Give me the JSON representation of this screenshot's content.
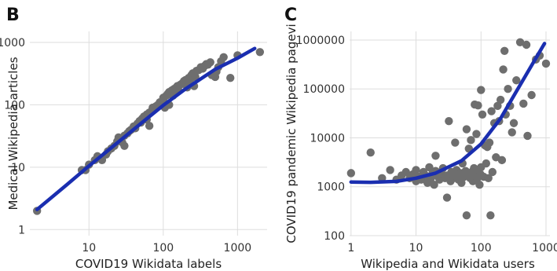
{
  "chart_data": [
    {
      "panel": "B",
      "type": "scatter",
      "xlabel": "COVID19 Wikidata labels",
      "ylabel": "Medical Wikipedia articles",
      "xscale": "log",
      "yscale": "log",
      "xticks": [
        {
          "value": 10,
          "label": "10"
        },
        {
          "value": 100,
          "label": "100"
        },
        {
          "value": 1000,
          "label": "1000"
        }
      ],
      "yticks": [
        {
          "value": 1,
          "label": "1"
        },
        {
          "value": 10,
          "label": "10"
        },
        {
          "value": 100,
          "label": "100"
        },
        {
          "value": 1000,
          "label": "1000"
        }
      ],
      "xlim": [
        1.6,
        2500
      ],
      "ylim": [
        0.8,
        1500
      ],
      "grid": true,
      "point_color": "#6e6e6e",
      "fit_color": "#1a2eb0",
      "points": [
        [
          2,
          2
        ],
        [
          8,
          9
        ],
        [
          9,
          9
        ],
        [
          10,
          11
        ],
        [
          12,
          13
        ],
        [
          13,
          15
        ],
        [
          15,
          13
        ],
        [
          17,
          16
        ],
        [
          18,
          18
        ],
        [
          20,
          20
        ],
        [
          22,
          22
        ],
        [
          24,
          26
        ],
        [
          25,
          30
        ],
        [
          28,
          25
        ],
        [
          30,
          22
        ],
        [
          30,
          32
        ],
        [
          33,
          35
        ],
        [
          35,
          38
        ],
        [
          37,
          40
        ],
        [
          40,
          45
        ],
        [
          42,
          42
        ],
        [
          45,
          50
        ],
        [
          48,
          55
        ],
        [
          50,
          52
        ],
        [
          52,
          60
        ],
        [
          55,
          65
        ],
        [
          60,
          58
        ],
        [
          60,
          70
        ],
        [
          65,
          46
        ],
        [
          65,
          75
        ],
        [
          70,
          80
        ],
        [
          72,
          90
        ],
        [
          75,
          85
        ],
        [
          80,
          95
        ],
        [
          85,
          100
        ],
        [
          90,
          110
        ],
        [
          95,
          105
        ],
        [
          100,
          120
        ],
        [
          100,
          130
        ],
        [
          105,
          90
        ],
        [
          110,
          140
        ],
        [
          115,
          150
        ],
        [
          120,
          160
        ],
        [
          120,
          100
        ],
        [
          130,
          170
        ],
        [
          135,
          140
        ],
        [
          140,
          180
        ],
        [
          150,
          190
        ],
        [
          155,
          200
        ],
        [
          160,
          170
        ],
        [
          170,
          210
        ],
        [
          180,
          220
        ],
        [
          190,
          240
        ],
        [
          200,
          250
        ],
        [
          210,
          190
        ],
        [
          220,
          270
        ],
        [
          230,
          230
        ],
        [
          240,
          300
        ],
        [
          250,
          320
        ],
        [
          260,
          200
        ],
        [
          270,
          280
        ],
        [
          280,
          350
        ],
        [
          300,
          360
        ],
        [
          320,
          400
        ],
        [
          340,
          380
        ],
        [
          360,
          420
        ],
        [
          380,
          450
        ],
        [
          400,
          440
        ],
        [
          430,
          480
        ],
        [
          450,
          300
        ],
        [
          500,
          280
        ],
        [
          520,
          340
        ],
        [
          550,
          400
        ],
        [
          600,
          500
        ],
        [
          650,
          580
        ],
        [
          800,
          270
        ],
        [
          1000,
          620
        ],
        [
          2000,
          700
        ]
      ],
      "fit": [
        [
          2,
          2.1
        ],
        [
          5,
          5.2
        ],
        [
          10,
          10.5
        ],
        [
          20,
          20.5
        ],
        [
          50,
          50
        ],
        [
          100,
          98
        ],
        [
          200,
          180
        ],
        [
          500,
          370
        ],
        [
          1000,
          560
        ],
        [
          1700,
          800
        ]
      ]
    },
    {
      "panel": "C",
      "type": "scatter",
      "xlabel": "Wikipedia and Wikidata users",
      "ylabel": "COVID19 pandemic Wikipedia pagevi",
      "xscale": "log",
      "yscale": "log",
      "xticks": [
        {
          "value": 1,
          "label": "1"
        },
        {
          "value": 10,
          "label": "10"
        },
        {
          "value": 100,
          "label": "100"
        },
        {
          "value": 1000,
          "label": "1000"
        }
      ],
      "yticks": [
        {
          "value": 100,
          "label": "100"
        },
        {
          "value": 1000,
          "label": "1000"
        },
        {
          "value": 10000,
          "label": "10000"
        },
        {
          "value": 100000,
          "label": "100000"
        },
        {
          "value": 1000000,
          "label": "1000000"
        }
      ],
      "xlim": [
        0.95,
        1150
      ],
      "ylim": [
        100,
        1500000
      ],
      "grid": true,
      "point_color": "#6e6e6e",
      "fit_color": "#1a2eb0",
      "points": [
        [
          1,
          1900
        ],
        [
          2,
          5000
        ],
        [
          3,
          1500
        ],
        [
          4,
          2200
        ],
        [
          5,
          1400
        ],
        [
          6,
          1700
        ],
        [
          7,
          2000
        ],
        [
          8,
          1500
        ],
        [
          9,
          1800
        ],
        [
          10,
          1300
        ],
        [
          10,
          2200
        ],
        [
          11,
          1600
        ],
        [
          12,
          1400
        ],
        [
          13,
          2000
        ],
        [
          14,
          1700
        ],
        [
          15,
          1200
        ],
        [
          16,
          2500
        ],
        [
          17,
          1500
        ],
        [
          18,
          1900
        ],
        [
          19,
          1100
        ],
        [
          20,
          2100
        ],
        [
          20,
          4300
        ],
        [
          22,
          1600
        ],
        [
          23,
          1400
        ],
        [
          25,
          1800
        ],
        [
          26,
          2400
        ],
        [
          28,
          1500
        ],
        [
          30,
          600
        ],
        [
          30,
          1700
        ],
        [
          32,
          22000
        ],
        [
          34,
          1300
        ],
        [
          35,
          2000
        ],
        [
          38,
          1500
        ],
        [
          40,
          8000
        ],
        [
          40,
          1700
        ],
        [
          42,
          2200
        ],
        [
          45,
          1400
        ],
        [
          48,
          1900
        ],
        [
          50,
          1200
        ],
        [
          52,
          3000
        ],
        [
          55,
          1600
        ],
        [
          58,
          2100
        ],
        [
          60,
          260
        ],
        [
          60,
          15000
        ],
        [
          62,
          1800
        ],
        [
          65,
          6000
        ],
        [
          68,
          1500
        ],
        [
          70,
          9000
        ],
        [
          72,
          2000
        ],
        [
          75,
          1300
        ],
        [
          78,
          2400
        ],
        [
          80,
          48000
        ],
        [
          82,
          1700
        ],
        [
          85,
          12000
        ],
        [
          88,
          1500
        ],
        [
          90,
          46000
        ],
        [
          92,
          2000
        ],
        [
          95,
          1100
        ],
        [
          98,
          1800
        ],
        [
          100,
          95000
        ],
        [
          100,
          2500
        ],
        [
          105,
          30000
        ],
        [
          110,
          1600
        ],
        [
          115,
          7000
        ],
        [
          120,
          3000
        ],
        [
          125,
          6500
        ],
        [
          130,
          1500
        ],
        [
          135,
          8000
        ],
        [
          140,
          260
        ],
        [
          145,
          35000
        ],
        [
          150,
          2000
        ],
        [
          160,
          20000
        ],
        [
          170,
          4000
        ],
        [
          180,
          45000
        ],
        [
          190,
          22000
        ],
        [
          200,
          60000
        ],
        [
          210,
          3500
        ],
        [
          220,
          250000
        ],
        [
          230,
          600000
        ],
        [
          240,
          30000
        ],
        [
          260,
          100000
        ],
        [
          280,
          45000
        ],
        [
          300,
          13000
        ],
        [
          320,
          20000
        ],
        [
          350,
          150000
        ],
        [
          400,
          900000
        ],
        [
          450,
          50000
        ],
        [
          500,
          800000
        ],
        [
          520,
          11000
        ],
        [
          600,
          75000
        ],
        [
          700,
          400000
        ],
        [
          800,
          480000
        ],
        [
          1000,
          330000
        ]
      ],
      "fit": [
        [
          1,
          1250
        ],
        [
          2,
          1230
        ],
        [
          5,
          1290
        ],
        [
          10,
          1500
        ],
        [
          20,
          1900
        ],
        [
          50,
          3400
        ],
        [
          100,
          7500
        ],
        [
          200,
          25000
        ],
        [
          500,
          200000
        ],
        [
          950,
          850000
        ]
      ]
    }
  ]
}
